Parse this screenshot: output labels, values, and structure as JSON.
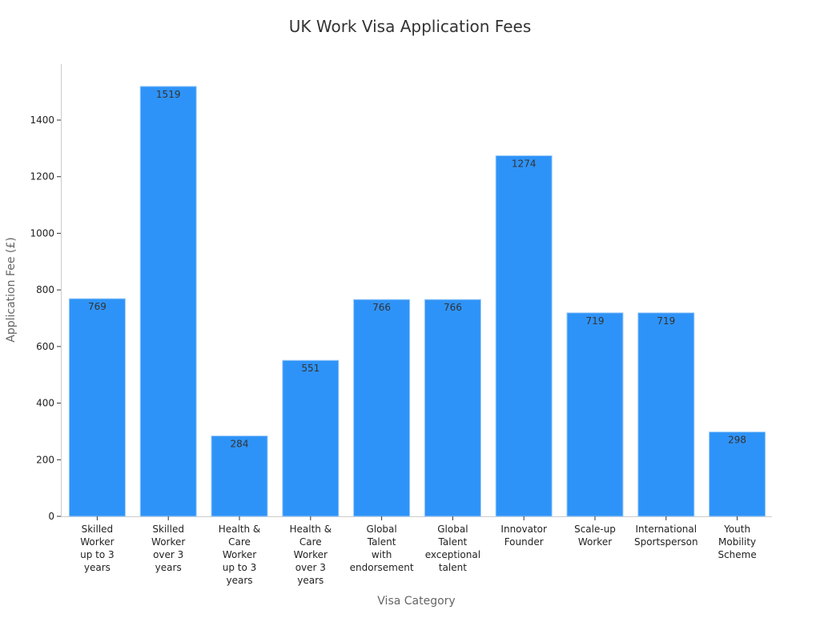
{
  "chart_data": {
    "type": "bar",
    "title": "UK Work Visa Application Fees",
    "xlabel": "Visa Category",
    "ylabel": "Application Fee (£)",
    "categories": [
      [
        "Skilled",
        "Worker",
        "up to 3",
        "years"
      ],
      [
        "Skilled",
        "Worker",
        "over 3",
        "years"
      ],
      [
        "Health &",
        "Care",
        "Worker",
        "up to 3",
        "years"
      ],
      [
        "Health &",
        "Care",
        "Worker",
        "over 3",
        "years"
      ],
      [
        "Global",
        "Talent",
        "with",
        "endorsement"
      ],
      [
        "Global",
        "Talent",
        "exceptional",
        "talent"
      ],
      [
        "Innovator",
        "Founder"
      ],
      [
        "Scale-up",
        "Worker"
      ],
      [
        "International",
        "Sportsperson"
      ],
      [
        "Youth",
        "Mobility",
        "Scheme"
      ]
    ],
    "values": [
      769,
      1519,
      284,
      551,
      766,
      766,
      1274,
      719,
      719,
      298
    ],
    "ylim": [
      0,
      1600
    ],
    "yticks": [
      0,
      200,
      400,
      600,
      800,
      1000,
      1200,
      1400
    ],
    "grid": false,
    "bar_color": "#2e93f8"
  }
}
